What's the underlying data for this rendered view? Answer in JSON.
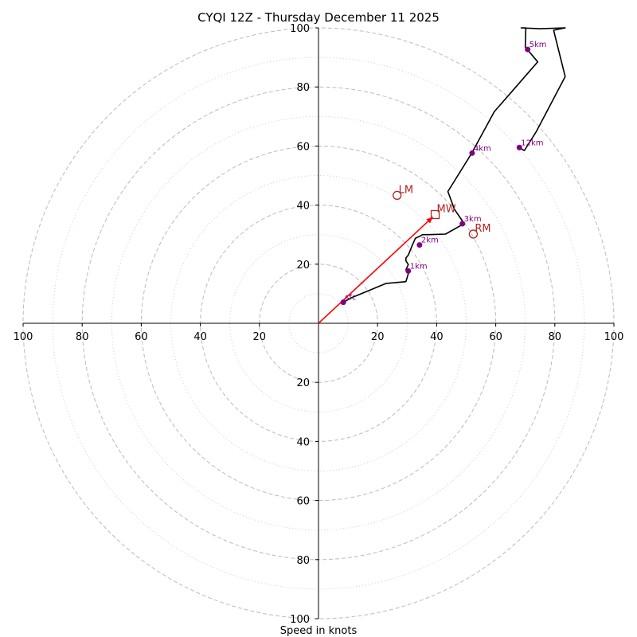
{
  "chart_data": {
    "type": "line",
    "title": "CYQI 12Z - Thursday December 11 2025",
    "xlabel": "Speed in knots",
    "xlim": [
      -100,
      100
    ],
    "ylim": [
      -100,
      100
    ],
    "ring_major": [
      20,
      40,
      60,
      80,
      100
    ],
    "ring_minor": [
      10,
      30,
      50,
      70,
      90
    ],
    "x_ticks": [
      {
        "value": -100,
        "label": "100"
      },
      {
        "value": -80,
        "label": "80"
      },
      {
        "value": -60,
        "label": "60"
      },
      {
        "value": -40,
        "label": "40"
      },
      {
        "value": -20,
        "label": "20"
      },
      {
        "value": 20,
        "label": "20"
      },
      {
        "value": 40,
        "label": "40"
      },
      {
        "value": 60,
        "label": "60"
      },
      {
        "value": 80,
        "label": "80"
      },
      {
        "value": 100,
        "label": "100"
      }
    ],
    "y_ticks": [
      {
        "value": 100,
        "label": "100"
      },
      {
        "value": 80,
        "label": "80"
      },
      {
        "value": 60,
        "label": "60"
      },
      {
        "value": 40,
        "label": "40"
      },
      {
        "value": 20,
        "label": "20"
      },
      {
        "value": -20,
        "label": "20"
      },
      {
        "value": -40,
        "label": "40"
      },
      {
        "value": -60,
        "label": "60"
      },
      {
        "value": -80,
        "label": "80"
      },
      {
        "value": -100,
        "label": "100"
      }
    ],
    "hodograph": {
      "color": "#000000",
      "u": [
        8.4,
        11.3,
        22.9,
        29.6,
        30.4,
        29.6,
        30.4,
        29.6,
        29.6,
        30.4,
        31.7,
        32.8,
        34.2,
        35.2,
        37.4,
        43.0,
        48.9,
        48.6,
        46.0,
        43.8,
        51.9,
        59.5,
        74.2,
        70.0,
        70.2,
        68.6,
        75.0,
        83.5,
        79.6,
        83.5,
        73.8,
        69.7,
        67.8
      ],
      "v": [
        7.1,
        8.7,
        13.5,
        14.1,
        16.8,
        18.1,
        19.9,
        21.1,
        22.1,
        23.1,
        26.3,
        28.8,
        29.4,
        30.0,
        30.0,
        30.2,
        33.5,
        34.8,
        38.6,
        44.6,
        57.6,
        71.6,
        88.5,
        93.5,
        100.0,
        100.0,
        99.7,
        100.0,
        99.2,
        83.5,
        65.0,
        58.5,
        59.5
      ]
    },
    "height_markers": [
      {
        "label": "sfc",
        "u": 8.4,
        "v": 7.1
      },
      {
        "label": "1km",
        "u": 30.4,
        "v": 17.7
      },
      {
        "label": "2km",
        "u": 34.2,
        "v": 26.5
      },
      {
        "label": "3km",
        "u": 48.7,
        "v": 33.7
      },
      {
        "label": "4km",
        "u": 52.0,
        "v": 57.6
      },
      {
        "label": "5km",
        "u": 70.8,
        "v": 92.7
      },
      {
        "label": "12km",
        "u": 68.0,
        "v": 59.5
      }
    ],
    "mean_wind": {
      "label": "MW",
      "u": 39.5,
      "v": 36.8,
      "color": "#b22222",
      "arrow_color": "#ff0000"
    },
    "storm_motions": [
      {
        "label": "LM",
        "u": 26.6,
        "v": 43.3
      },
      {
        "label": "RM",
        "u": 52.4,
        "v": 30.2
      }
    ],
    "colors": {
      "ring": "#bbbbbb",
      "minor_ring": "#cccccc",
      "marker": "#800080",
      "storm": "#b22222"
    }
  }
}
